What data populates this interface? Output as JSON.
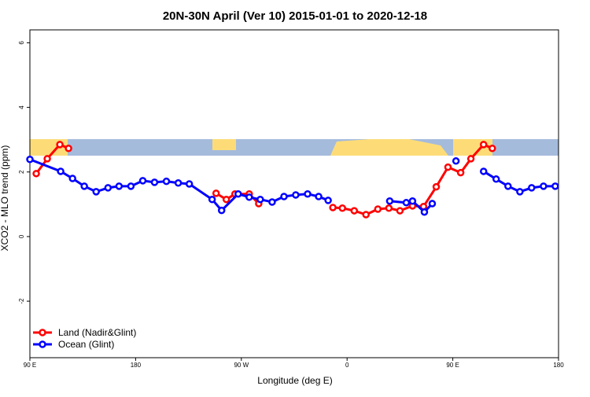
{
  "chart_data": {
    "type": "line",
    "title": "20N-30N April (Ver 10)   2015-01-01 to 2020-12-18",
    "x_label": "Longitude (deg E)",
    "y_label": "XCO2 - MLO trend (ppm)",
    "xlim": [
      90,
      540
    ],
    "ylim": [
      -3.75,
      6.4
    ],
    "xticks": [
      {
        "value": 90,
        "label": "90 E"
      },
      {
        "value": 180,
        "label": "180"
      },
      {
        "value": 270,
        "label": "90 W"
      },
      {
        "value": 360,
        "label": "0"
      },
      {
        "value": 450,
        "label": "90 E"
      },
      {
        "value": 540,
        "label": "180"
      }
    ],
    "yticks": [
      -2,
      0,
      2,
      4,
      6
    ],
    "legend": "bottom-left",
    "series": [
      {
        "name": "Land (Nadir&Glint)",
        "color": "#ff0000",
        "x": [
          95.4,
          104.8,
          115.5,
          122.9,
          200,
          248.5,
          257.2,
          264.6,
          276.7,
          284.8,
          350,
          347.9,
          356.0,
          366.1,
          376.1,
          386.2,
          395.6,
          405.0,
          415.7,
          425.1,
          435.9,
          445.9,
          456.7,
          465.4,
          476.2,
          483.6
        ],
        "values": [
          1.95,
          2.41,
          2.85,
          2.73,
          null,
          1.34,
          1.15,
          1.32,
          1.32,
          1.02,
          null,
          0.9,
          0.88,
          0.8,
          0.68,
          0.85,
          0.88,
          0.8,
          0.95,
          0.93,
          1.54,
          2.15,
          1.98,
          2.41,
          2.85,
          2.73
        ]
      },
      {
        "name": "Ocean (Glint)",
        "color": "#0000ff",
        "x": [
          90,
          116.2,
          126.3,
          136.3,
          146.4,
          156.5,
          165.9,
          176.0,
          186.1,
          196.1,
          206.2,
          216.3,
          225.7,
          245.1,
          253.2,
          267.3,
          276.7,
          286.1,
          296.2,
          306.3,
          316.3,
          326.4,
          335.8,
          343.9,
          370,
          396.3,
          410.4,
          415.7,
          425.8,
          432.5,
          440,
          452.7,
          460,
          476.2,
          486.9,
          497.0,
          507.1,
          517.1,
          527.2,
          537.2
        ],
        "values": [
          2.39,
          2.02,
          1.8,
          1.56,
          1.39,
          1.51,
          1.56,
          1.56,
          1.73,
          1.68,
          1.71,
          1.66,
          1.63,
          1.15,
          0.81,
          1.32,
          1.22,
          1.15,
          1.07,
          1.24,
          1.29,
          1.32,
          1.24,
          1.12,
          null,
          1.1,
          1.05,
          1.1,
          0.76,
          1.02,
          null,
          2.34,
          null,
          2.02,
          1.78,
          1.56,
          1.39,
          1.51,
          1.56,
          1.56
        ]
      }
    ]
  }
}
